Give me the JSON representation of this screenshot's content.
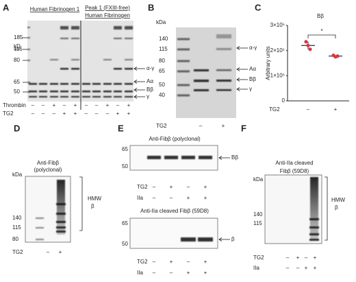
{
  "panels": {
    "A": {
      "letter": "A",
      "group_left": "Human Fibrinogen 1",
      "group_right": [
        "Peak 1 (FXIII-free)",
        "Human Fibrinogen"
      ],
      "unit": "kD",
      "markers": [
        "185",
        "115",
        "80",
        "65",
        "50"
      ],
      "band_labels": [
        "α-γ",
        "Aα",
        "Bβ",
        "γ"
      ],
      "rows": [
        {
          "label": "Thrombin",
          "signs": [
            "–",
            "–",
            "+",
            "–",
            "+",
            "–",
            "–",
            "+",
            "–",
            "+"
          ]
        },
        {
          "label": "TG2",
          "signs": [
            "–",
            "–",
            "–",
            "+",
            "+",
            "–",
            "–",
            "–",
            "+",
            "+"
          ]
        }
      ]
    },
    "B": {
      "letter": "B",
      "unit": "kDa",
      "markers": [
        "140",
        "115",
        "80",
        "65",
        "50",
        "40"
      ],
      "band_labels": [
        "α-γ",
        "Aα",
        "Bβ",
        "γ"
      ],
      "rows": [
        {
          "label": "TG2",
          "signs": [
            "–",
            "+"
          ]
        }
      ]
    },
    "C": {
      "letter": "C",
      "chart": {
        "type": "scatter",
        "title": "Bβ",
        "y_label": "Arbitrary units",
        "x_label": "TG2",
        "categories": [
          "–",
          "+"
        ],
        "color": "#d43a3a",
        "points": [
          [
            235000,
            220000,
            205000
          ],
          [
            181000,
            175000,
            178000
          ]
        ],
        "means": [
          220000,
          178000
        ],
        "sd": [
          15000,
          3000
        ],
        "significance": "*",
        "ylim": [
          0,
          300000
        ],
        "yticks": [
          0,
          {
            "value": 100000,
            "label": "1×10⁵"
          },
          {
            "value": 200000,
            "label": "2×10⁵"
          },
          {
            "value": 300000,
            "label": "3×10⁵"
          }
        ]
      }
    },
    "D": {
      "letter": "D",
      "antibody": [
        "Anti-Fibβ",
        "(polyclonal)"
      ],
      "unit": "kDa",
      "markers": [
        "140",
        "115",
        "80"
      ],
      "bracket_label": [
        "HMW",
        "β"
      ],
      "rows": [
        {
          "label": "TG2",
          "signs": [
            "–",
            "+"
          ]
        }
      ]
    },
    "E": {
      "letter": "E",
      "blots": [
        {
          "antibody": "Anti-Fibβ (polyclonal)",
          "markers": [
            "65",
            "50"
          ],
          "band_label": "Bβ",
          "rows": [
            {
              "label": "TG2",
              "signs": [
                "–",
                "+",
                "–",
                "+"
              ]
            },
            {
              "label": "IIa",
              "signs": [
                "–",
                "–",
                "+",
                "+"
              ]
            }
          ]
        },
        {
          "antibody": "Anti-IIa cleaved Fibβ (59D8)",
          "markers": [
            "65",
            "50"
          ],
          "band_label": "β",
          "rows": [
            {
              "label": "TG2",
              "signs": [
                "–",
                "+",
                "–",
                "+"
              ]
            },
            {
              "label": "IIa",
              "signs": [
                "–",
                "–",
                "+",
                "+"
              ]
            }
          ]
        }
      ]
    },
    "F": {
      "letter": "F",
      "antibody": [
        "Anti-IIa cleaved",
        "Fibβ (59D8)"
      ],
      "unit": "kDa",
      "markers": [
        "140",
        "115"
      ],
      "bracket_label": [
        "HMW",
        "β"
      ],
      "rows": [
        {
          "label": "TG2",
          "signs": [
            "–",
            "+",
            "–",
            "+"
          ]
        },
        {
          "label": "IIa",
          "signs": [
            "–",
            "–",
            "+",
            "+"
          ]
        }
      ]
    }
  }
}
